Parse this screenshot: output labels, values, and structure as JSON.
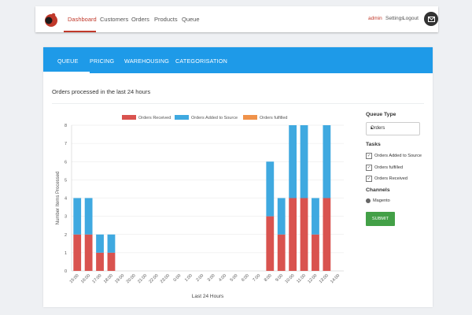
{
  "topnav": {
    "items": [
      "Dashboard",
      "Customers",
      "Orders",
      "Products",
      "Queue"
    ],
    "active": "Dashboard",
    "admin": "admin",
    "settings": "Settings",
    "logout": "Logout",
    "colors": {
      "accent": "#c0392b"
    }
  },
  "tabs": [
    "QUEUE",
    "PRICING",
    "WAREHOUSING",
    "CATEGORISATION"
  ],
  "card": {
    "title": "Orders processed in the last 24 hours"
  },
  "chart_data": {
    "type": "bar",
    "stacked": true,
    "categories": [
      "15:00",
      "16:00",
      "17:00",
      "18:00",
      "19:00",
      "20:00",
      "21:00",
      "22:00",
      "23:00",
      "0:00",
      "1:00",
      "2:00",
      "3:00",
      "4:00",
      "5:00",
      "6:00",
      "7:00",
      "8:00",
      "9:00",
      "10:00",
      "11:00",
      "12:00",
      "13:00",
      "14:00"
    ],
    "series": [
      {
        "name": "Orders Received",
        "color": "#d9534f",
        "values": [
          2,
          2,
          1,
          1,
          0,
          0,
          0,
          0,
          0,
          0,
          0,
          0,
          0,
          0,
          0,
          0,
          0,
          3,
          2,
          4,
          4,
          2,
          4,
          0
        ]
      },
      {
        "name": "Orders Added to Source",
        "color": "#3fa9e0",
        "values": [
          2,
          2,
          1,
          1,
          0,
          0,
          0,
          0,
          0,
          0,
          0,
          0,
          0,
          0,
          0,
          0,
          0,
          3,
          2,
          4,
          4,
          2,
          4,
          0
        ]
      },
      {
        "name": "Orders fulfilled",
        "color": "#f0924a",
        "values": [
          0,
          0,
          0,
          0,
          0,
          0,
          0,
          0,
          0,
          0,
          0,
          0,
          0,
          0,
          0,
          0,
          0,
          0,
          0,
          0,
          0,
          0,
          0,
          0
        ]
      }
    ],
    "y_ticks": [
      "0",
      "1",
      "2",
      "3",
      "4",
      "5",
      "6",
      "7",
      "8"
    ],
    "ylim": [
      0,
      8
    ],
    "xlabel": "Last 24 Hours",
    "ylabel": "Number Items Processed",
    "legend": "top",
    "grid": true
  },
  "side": {
    "queue_type_label": "Queue Type",
    "select_value": "Orders",
    "tasks_label": "Tasks",
    "tasks": [
      "Orders Added to Source",
      "Orders fulfilled",
      "Orders Received"
    ],
    "channels_label": "Channels",
    "channel": "Magento",
    "submit": "SUBMIT"
  }
}
